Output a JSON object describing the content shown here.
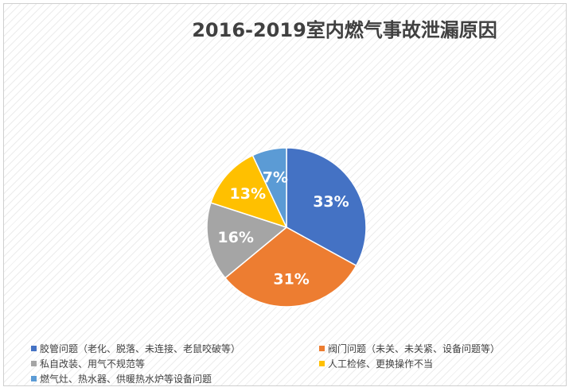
{
  "chart_data": {
    "type": "pie",
    "title": "2016-2019室内燃气事故泄漏原因",
    "series": [
      {
        "name": "胶管问题（老化、脱落、未连接、老鼠咬破等）",
        "value": 33,
        "label": "33%",
        "color": "#4472C4"
      },
      {
        "name": "阀门问题（未关、未关紧、设备问题等）",
        "value": 31,
        "label": "31%",
        "color": "#ED7D31"
      },
      {
        "name": "私自改装、用气不规范等",
        "value": 16,
        "label": "16%",
        "color": "#A5A5A5"
      },
      {
        "name": "人工检修、更换操作不当",
        "value": 13,
        "label": "13%",
        "color": "#FFC000"
      },
      {
        "name": "燃气灶、热水器、供暖热水炉等设备问题",
        "value": 7,
        "label": "7%",
        "color": "#5B9BD5"
      }
    ],
    "legend_position": "bottom"
  }
}
